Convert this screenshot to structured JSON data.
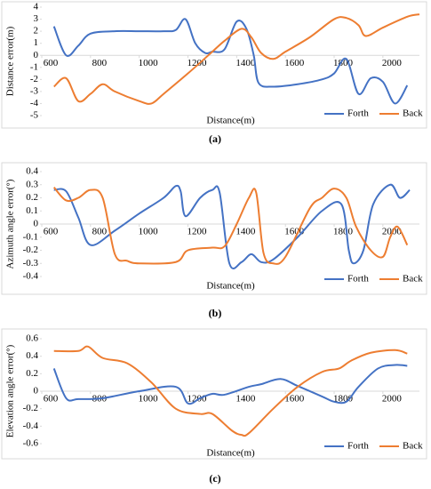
{
  "chart_data": [
    {
      "type": "line",
      "caption": "(a)",
      "ylabel": "Distance error(m)",
      "xlabel": "Distance(m)",
      "xlim": [
        600,
        2150
      ],
      "xticks": [
        600,
        800,
        1000,
        1200,
        1400,
        1600,
        1800,
        2000
      ],
      "ylim": [
        -5,
        4
      ],
      "yticks": [
        -5,
        -4,
        -3,
        -2,
        -1,
        0,
        1,
        2,
        3,
        4
      ],
      "legend": "lower right",
      "series": [
        {
          "name": "Forth",
          "color": "#4472c4",
          "x": [
            650,
            700,
            750,
            800,
            900,
            1000,
            1100,
            1150,
            1190,
            1230,
            1270,
            1300,
            1350,
            1400,
            1440,
            1470,
            1490,
            1550,
            1650,
            1750,
            1800,
            1850,
            1900,
            1950,
            2000,
            2050,
            2100
          ],
          "values": [
            2.4,
            0,
            0.8,
            1.8,
            2,
            2,
            2,
            2.1,
            3,
            1,
            0.2,
            0.3,
            0.5,
            2.8,
            2.2,
            0,
            -2.3,
            -2.6,
            -2.4,
            -2,
            -1.5,
            -0.3,
            -3.2,
            -1.9,
            -2.2,
            -4,
            -2.5
          ]
        },
        {
          "name": "Back",
          "color": "#ed7d31",
          "x": [
            650,
            700,
            750,
            800,
            850,
            900,
            1000,
            1050,
            1100,
            1200,
            1300,
            1350,
            1420,
            1460,
            1500,
            1550,
            1600,
            1700,
            1800,
            1850,
            1900,
            1930,
            2000,
            2100,
            2150
          ],
          "values": [
            -2.6,
            -1.9,
            -3.8,
            -3.2,
            -2.4,
            -3,
            -3.8,
            -4,
            -3.2,
            -1.5,
            0.3,
            1.2,
            2.2,
            1.5,
            0.2,
            -0.3,
            0.3,
            1.5,
            3,
            3.1,
            2.5,
            1.6,
            2.3,
            3.2,
            3.4
          ]
        }
      ]
    },
    {
      "type": "line",
      "caption": "(b)",
      "ylabel": "Azimuth angle error(°)",
      "xlabel": "Distance(m)",
      "xlim": [
        600,
        2150
      ],
      "xticks": [
        600,
        800,
        1000,
        1200,
        1400,
        1600,
        1800,
        2000
      ],
      "ylim": [
        -0.4,
        0.4
      ],
      "yticks": [
        -0.4,
        -0.3,
        -0.2,
        -0.1,
        0,
        0.1,
        0.2,
        0.3,
        0.4
      ],
      "legend": "lower right",
      "series": [
        {
          "name": "Forth",
          "color": "#4472c4",
          "x": [
            650,
            700,
            750,
            800,
            900,
            1000,
            1100,
            1150,
            1170,
            1190,
            1250,
            1300,
            1330,
            1370,
            1420,
            1460,
            1500,
            1550,
            1650,
            1750,
            1830,
            1860,
            1880,
            1920,
            1960,
            2030,
            2070,
            2110
          ],
          "values": [
            0.26,
            0.25,
            0.05,
            -0.16,
            -0.05,
            0.08,
            0.2,
            0.29,
            0.25,
            0.06,
            0.2,
            0.26,
            0.24,
            -0.3,
            -0.29,
            -0.23,
            -0.29,
            -0.27,
            -0.1,
            0.1,
            0.15,
            -0.2,
            -0.3,
            -0.2,
            0.15,
            0.3,
            0.2,
            0.26
          ]
        },
        {
          "name": "Back",
          "color": "#ed7d31",
          "x": [
            650,
            700,
            750,
            800,
            850,
            900,
            950,
            1000,
            1150,
            1200,
            1300,
            1350,
            1400,
            1450,
            1480,
            1510,
            1550,
            1600,
            1700,
            1750,
            1800,
            1850,
            1890,
            1950,
            2000,
            2030,
            2060,
            2100
          ],
          "values": [
            0.28,
            0.18,
            0.2,
            0.26,
            0.2,
            -0.23,
            -0.28,
            -0.3,
            -0.29,
            -0.2,
            -0.18,
            -0.17,
            0,
            0.2,
            0.24,
            -0.22,
            -0.3,
            -0.25,
            0.12,
            0.2,
            0.27,
            0.2,
            -0.02,
            -0.2,
            -0.25,
            -0.1,
            -0.02,
            -0.16
          ]
        }
      ]
    },
    {
      "type": "line",
      "caption": "(c)",
      "ylabel": "Elevation angle error(°)",
      "xlabel": "Distance(m)",
      "xlim": [
        600,
        2150
      ],
      "xticks": [
        600,
        800,
        1000,
        1200,
        1400,
        1600,
        1800,
        2000
      ],
      "ylim": [
        -0.6,
        0.6
      ],
      "yticks": [
        -0.6,
        -0.4,
        -0.2,
        0,
        0.2,
        0.4,
        0.6
      ],
      "legend": "lower right",
      "series": [
        {
          "name": "Forth",
          "color": "#4472c4",
          "x": [
            650,
            700,
            750,
            850,
            1000,
            1150,
            1200,
            1250,
            1300,
            1350,
            1450,
            1500,
            1580,
            1650,
            1750,
            1800,
            1850,
            1900,
            1980,
            2050,
            2100
          ],
          "values": [
            0.26,
            -0.08,
            -0.09,
            -0.08,
            0,
            0.05,
            -0.14,
            -0.08,
            -0.03,
            -0.04,
            0.05,
            0.08,
            0.14,
            0.06,
            -0.06,
            -0.12,
            -0.12,
            0.05,
            0.26,
            0.3,
            0.29
          ]
        },
        {
          "name": "Back",
          "color": "#ed7d31",
          "x": [
            650,
            750,
            790,
            850,
            950,
            1050,
            1150,
            1250,
            1300,
            1380,
            1420,
            1450,
            1550,
            1650,
            1750,
            1820,
            1870,
            1950,
            2050,
            2100
          ],
          "values": [
            0.46,
            0.46,
            0.51,
            0.38,
            0.32,
            0.1,
            -0.2,
            -0.26,
            -0.26,
            -0.45,
            -0.5,
            -0.48,
            -0.2,
            0.05,
            0.22,
            0.26,
            0.35,
            0.44,
            0.47,
            0.43
          ]
        }
      ]
    }
  ]
}
